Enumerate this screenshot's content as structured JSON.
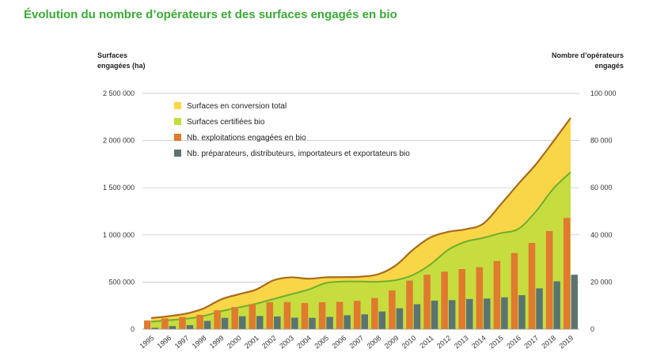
{
  "title": "Évolution du nombre d’opérateurs et des surfaces engagés en bio",
  "colors": {
    "title": "#3aaa35",
    "conversion_fill": "#f9d648",
    "certified_fill": "#c6dc3f",
    "total_line": "#a86b1a",
    "certified_line": "#6fae2e",
    "exploitations_bar": "#e07a2e",
    "preparateurs_bar": "#5b7472",
    "grid": "#bfbfbf"
  },
  "chart_data": {
    "type": "bar+area",
    "title": "Évolution du nombre d’opérateurs et des surfaces engagés en bio",
    "y_left": {
      "label_lines": [
        "Surfaces",
        "engagées (ha)"
      ],
      "ticks": [
        "0",
        "500 000",
        "1 000 000",
        "1 500 000",
        "2 000 000",
        "2 500 000"
      ],
      "range": [
        0,
        2500000
      ]
    },
    "y_right": {
      "label_lines": [
        "Nombre d’opérateurs",
        "engagés"
      ],
      "ticks": [
        "0",
        "20 000",
        "40 000",
        "60 000",
        "80 000",
        "100 000"
      ],
      "range": [
        0,
        100000
      ]
    },
    "categories": [
      "1995",
      "1996",
      "1997",
      "1998",
      "1999",
      "2000",
      "2001",
      "2002",
      "2003",
      "2004",
      "2005",
      "2006",
      "2007",
      "2008",
      "2009",
      "2010",
      "2011",
      "2012",
      "2013",
      "2014",
      "2015",
      "2016",
      "2017",
      "2018",
      "2019"
    ],
    "grid": true,
    "legend_position": "top-left",
    "series": [
      {
        "name": "Surfaces en conversion total",
        "kind": "area",
        "axis": "left",
        "values": [
          118000,
          138000,
          165000,
          220000,
          316000,
          370000,
          420000,
          518000,
          550000,
          535000,
          550000,
          552000,
          557000,
          583000,
          677000,
          845000,
          975000,
          1032000,
          1060000,
          1118000,
          1322000,
          1538000,
          1745000,
          1988000,
          2240000
        ]
      },
      {
        "name": "Surfaces certifiées bio",
        "kind": "area",
        "axis": "left",
        "values": [
          80000,
          95000,
          110000,
          140000,
          190000,
          230000,
          270000,
          320000,
          370000,
          420000,
          490000,
          505000,
          505000,
          503000,
          520000,
          577000,
          690000,
          842000,
          928000,
          968000,
          1019000,
          1062000,
          1245000,
          1487000,
          1665000
        ]
      },
      {
        "name": "Nb. exploitations engagées en bio",
        "kind": "bar",
        "axis": "right",
        "values": [
          3700,
          4600,
          5200,
          6100,
          8000,
          9400,
          10600,
          11400,
          11500,
          11100,
          11400,
          11600,
          12000,
          13200,
          16400,
          20600,
          23100,
          24400,
          25500,
          26300,
          28900,
          32300,
          36600,
          41600,
          47200
        ]
      },
      {
        "name": "Nb. préparateurs, distributeurs, importateurs et exportateurs bio",
        "kind": "bar",
        "axis": "right",
        "values": [
          600,
          1300,
          1700,
          3500,
          4800,
          5500,
          5600,
          5400,
          4900,
          4800,
          5200,
          5900,
          6300,
          7500,
          8900,
          10600,
          12100,
          12300,
          12800,
          13000,
          13500,
          14400,
          17300,
          20300,
          23100
        ]
      }
    ]
  }
}
